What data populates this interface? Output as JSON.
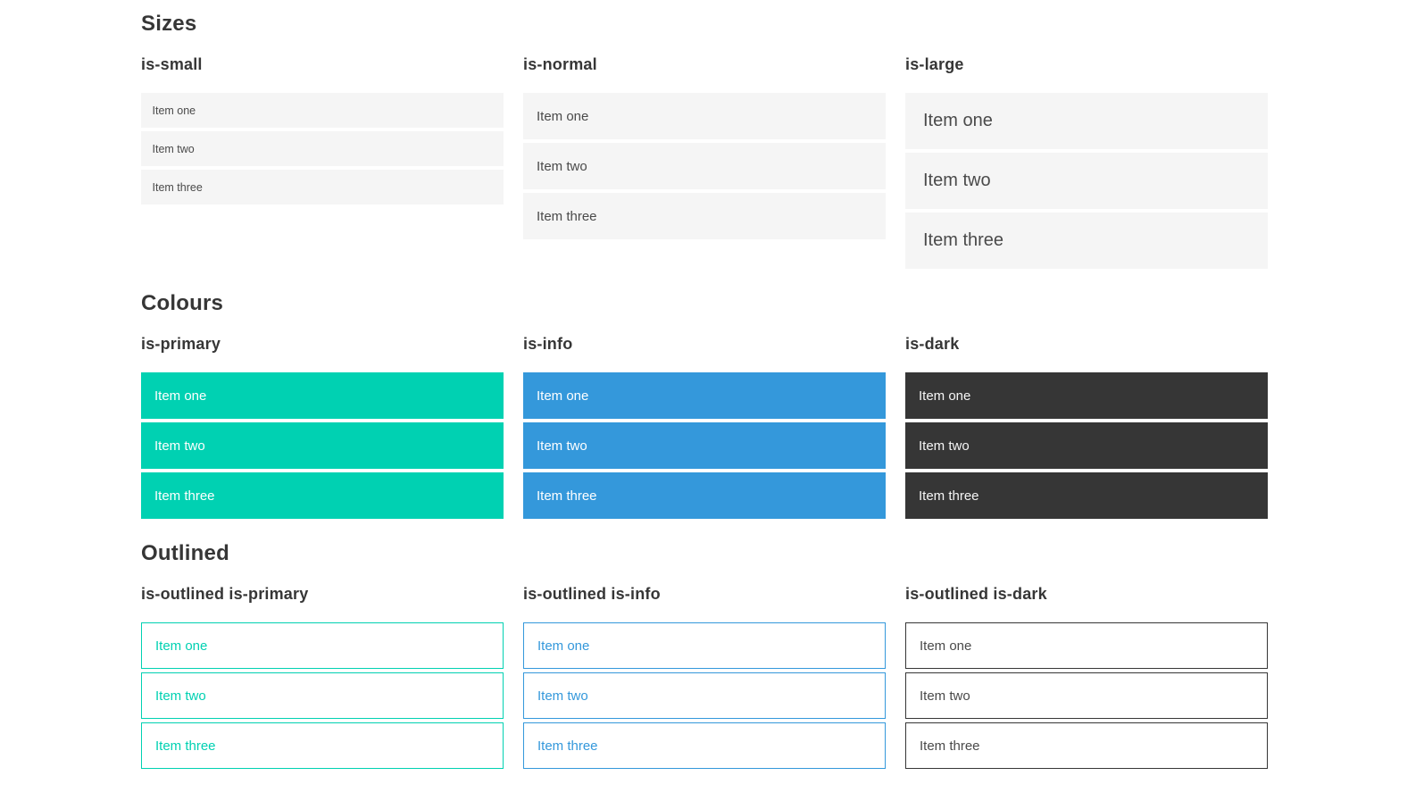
{
  "colors": {
    "primary": "#00d1b2",
    "info": "#3498db",
    "dark": "#363636",
    "item_bg": "#f5f5f5",
    "item_text": "#4a4a4a",
    "heading_text": "#363636"
  },
  "sections": [
    {
      "title": "Sizes",
      "groups": [
        {
          "label": "is-small",
          "variant": "small",
          "items": [
            "Item one",
            "Item two",
            "Item three"
          ]
        },
        {
          "label": "is-normal",
          "variant": "normal",
          "items": [
            "Item one",
            "Item two",
            "Item three"
          ]
        },
        {
          "label": "is-large",
          "variant": "large",
          "items": [
            "Item one",
            "Item two",
            "Item three"
          ]
        }
      ]
    },
    {
      "title": "Colours",
      "groups": [
        {
          "label": "is-primary",
          "variant": "primary",
          "items": [
            "Item one",
            "Item two",
            "Item three"
          ]
        },
        {
          "label": "is-info",
          "variant": "info",
          "items": [
            "Item one",
            "Item two",
            "Item three"
          ]
        },
        {
          "label": "is-dark",
          "variant": "dark",
          "items": [
            "Item one",
            "Item two",
            "Item three"
          ]
        }
      ]
    },
    {
      "title": "Outlined",
      "groups": [
        {
          "label": "is-outlined is-primary",
          "variant": "outlined-primary",
          "items": [
            "Item one",
            "Item two",
            "Item three"
          ]
        },
        {
          "label": "is-outlined is-info",
          "variant": "outlined-info",
          "items": [
            "Item one",
            "Item two",
            "Item three"
          ]
        },
        {
          "label": "is-outlined is-dark",
          "variant": "outlined-dark",
          "items": [
            "Item one",
            "Item two",
            "Item three"
          ]
        }
      ]
    }
  ]
}
